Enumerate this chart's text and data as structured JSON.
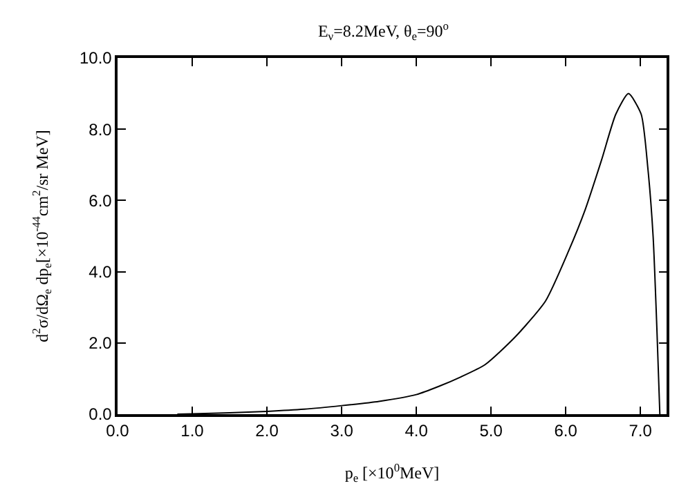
{
  "chart_data": {
    "type": "line",
    "title": "E$_{ν}$=8.2MeV, θ$_{e}$=90$^{o}$",
    "xlabel": "p$_{e}$ [×10$^{0}$MeV]",
    "ylabel": "d$^{2}$σ/dΩ$_{e}$ dp$_{e}$[×10$^{-44}$cm$^{2}$/sr MeV]",
    "x": [
      0.8,
      1.0,
      1.5,
      2.0,
      2.5,
      3.0,
      3.5,
      4.0,
      4.3,
      4.6,
      4.92,
      5.32,
      5.73,
      6.04,
      6.26,
      6.48,
      6.67,
      6.84,
      7.01,
      7.1,
      7.17,
      7.22,
      7.26
    ],
    "series": [
      {
        "color": "#000000",
        "values": [
          0.0,
          0.01,
          0.04,
          0.08,
          0.14,
          0.24,
          0.36,
          0.55,
          0.78,
          1.05,
          1.39,
          2.16,
          3.18,
          4.59,
          5.74,
          7.14,
          8.42,
          9.0,
          8.42,
          6.89,
          4.98,
          2.41,
          0.0
        ]
      }
    ],
    "xlim": [
      0,
      7.35
    ],
    "ylim": [
      0,
      10
    ],
    "xticks": [
      {
        "value": 0,
        "label": "0.0"
      },
      {
        "value": 1,
        "label": "1.0"
      },
      {
        "value": 2,
        "label": "2.0"
      },
      {
        "value": 3,
        "label": "3.0"
      },
      {
        "value": 4,
        "label": "4.0"
      },
      {
        "value": 5,
        "label": "5.0"
      },
      {
        "value": 6,
        "label": "6.0"
      },
      {
        "value": 7,
        "label": "7.0"
      }
    ],
    "yticks": [
      {
        "value": 0,
        "label": "0.0"
      },
      {
        "value": 2,
        "label": "2.0"
      },
      {
        "value": 4,
        "label": "4.0"
      },
      {
        "value": 6,
        "label": "6.0"
      },
      {
        "value": 8,
        "label": "8.0"
      },
      {
        "value": 10,
        "label": "10.0"
      }
    ],
    "legend": false,
    "marker": "none",
    "line_style": "solid"
  }
}
